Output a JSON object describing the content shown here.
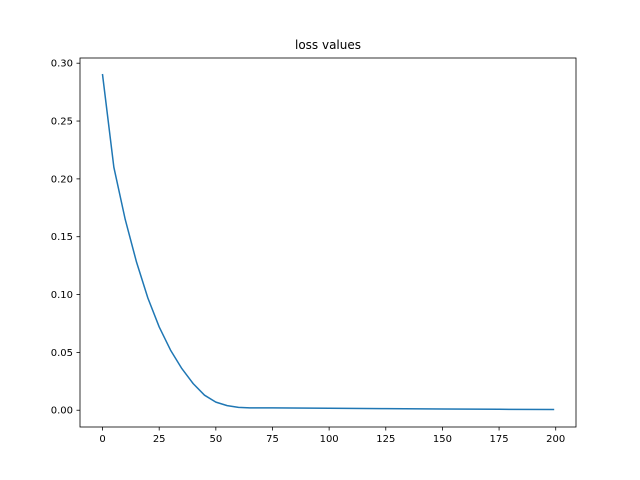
{
  "chart_data": {
    "type": "line",
    "title": "loss values",
    "xlabel": "",
    "ylabel": "",
    "xlim": [
      -9.95,
      208.95
    ],
    "ylim": [
      -0.0145,
      0.3045
    ],
    "xticks": [
      0,
      25,
      50,
      75,
      100,
      125,
      150,
      175,
      200
    ],
    "xtick_labels": [
      "0",
      "25",
      "50",
      "75",
      "100",
      "125",
      "150",
      "175",
      "200"
    ],
    "yticks": [
      0.0,
      0.05,
      0.1,
      0.15,
      0.2,
      0.25,
      0.3
    ],
    "ytick_labels": [
      "0.00",
      "0.05",
      "0.10",
      "0.15",
      "0.20",
      "0.25",
      "0.30"
    ],
    "grid": false,
    "legend": "none",
    "line_color": "#1f77b4",
    "series": [
      {
        "x": [
          0,
          5,
          10,
          15,
          20,
          25,
          30,
          35,
          40,
          45,
          50,
          55,
          60,
          65,
          70,
          75,
          100,
          125,
          150,
          175,
          199
        ],
        "values": [
          0.29,
          0.21,
          0.165,
          0.128,
          0.097,
          0.072,
          0.052,
          0.036,
          0.023,
          0.013,
          0.007,
          0.004,
          0.0025,
          0.002,
          0.002,
          0.002,
          0.0017,
          0.0014,
          0.0011,
          0.0008,
          0.0006
        ]
      }
    ]
  }
}
